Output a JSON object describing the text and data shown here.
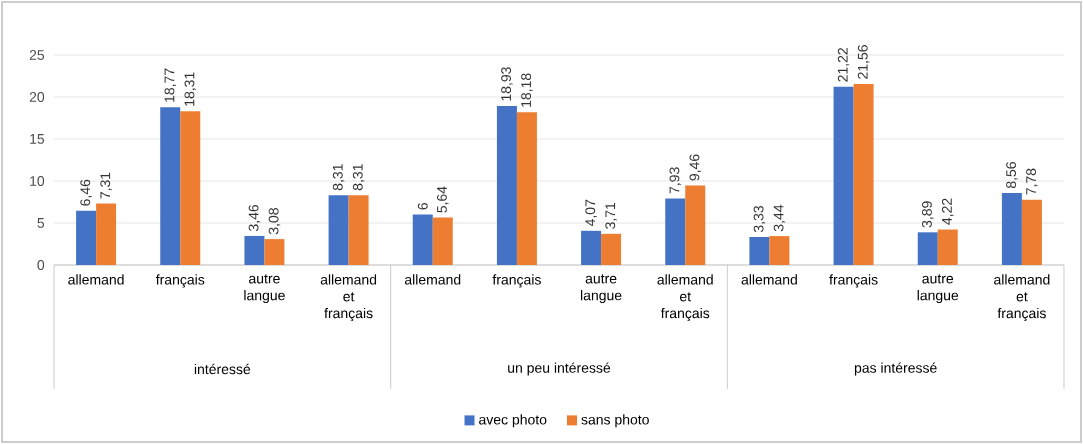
{
  "chart_data": {
    "type": "bar",
    "categories": [
      "allemand",
      "français",
      "autre langue",
      "allemand et français",
      "allemand",
      "français",
      "autre langue",
      "allemand et français",
      "allemand",
      "français",
      "autre langue",
      "allemand et français"
    ],
    "series": [
      {
        "name": "avec photo",
        "color": "#4472c4",
        "values": [
          6.46,
          18.77,
          3.46,
          8.31,
          6,
          18.93,
          4.07,
          7.93,
          3.33,
          21.22,
          3.89,
          8.56
        ],
        "value_labels": [
          "6,46",
          "18,77",
          "3,46",
          "8,31",
          "6",
          "18,93",
          "4,07",
          "7,93",
          "3,33",
          "21,22",
          "3,89",
          "8,56"
        ]
      },
      {
        "name": "sans photo",
        "color": "#ed7d31",
        "values": [
          7.31,
          18.31,
          3.08,
          8.31,
          5.64,
          18.18,
          3.71,
          9.46,
          3.44,
          21.56,
          4.22,
          7.78
        ],
        "value_labels": [
          "7,31",
          "18,31",
          "3,08",
          "8,31",
          "5,64",
          "18,18",
          "3,71",
          "9,46",
          "3,44",
          "21,56",
          "4,22",
          "7,78"
        ]
      }
    ],
    "annotations": [
      "intéressé",
      "un peu intéressé",
      "pas intéressé"
    ],
    "ylim": [
      0,
      25
    ],
    "yticks": [
      0,
      5,
      10,
      15,
      20,
      25
    ],
    "grid": "y",
    "legend": "bottom"
  }
}
